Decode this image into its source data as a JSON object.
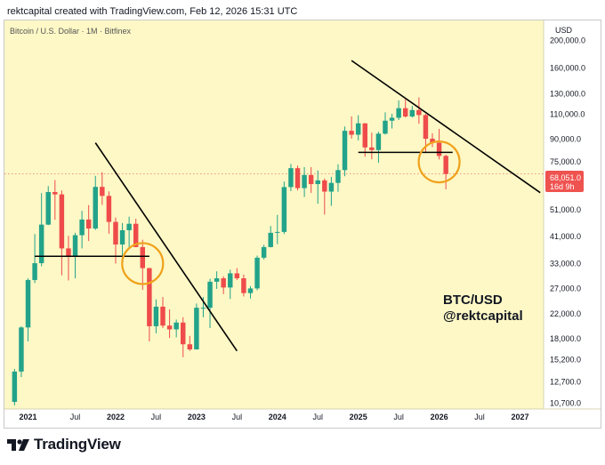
{
  "header": {
    "text": "rektcapital created with TradingView.com, Feb 12, 2026 15:31 UTC"
  },
  "footer": {
    "brand": "TradingView",
    "logo_icon": "tradingview-logo-icon"
  },
  "colors": {
    "background": "#fdf8c6",
    "up": "#22a38a",
    "down": "#ef4b4b",
    "trendline": "#000000",
    "circle": "#f0a21b",
    "price_tag": "#ef5350"
  },
  "chart_data": {
    "type": "candlestick",
    "title": "Bitcoin / U.S. Dollar · 1M · Bitfinex",
    "currency": "USD",
    "y_scale": "log",
    "ylim": [
      10200,
      235000
    ],
    "y_ticks": [
      200000,
      160000,
      130000,
      110000,
      90000,
      75000,
      51000,
      41000,
      33000,
      27000,
      22000,
      18000,
      15200,
      12700,
      10700
    ],
    "y_tick_labels": [
      "200,000.0",
      "160,000.0",
      "130,000.0",
      "110,000.0",
      "90,000.0",
      "75,000.0",
      "51,000.0",
      "41,000.0",
      "33,000.0",
      "27,000.0",
      "22,000.0",
      "18,000.0",
      "15,200.0",
      "12,700.0",
      "10,700.0"
    ],
    "x_ticks": [
      "2020-12",
      "2021-07",
      "2022-01",
      "2022-07",
      "2023-01",
      "2023-07",
      "2024-01",
      "2024-07",
      "2025-01",
      "2025-07",
      "2026-01",
      "2026-07",
      "2027-01"
    ],
    "x_tick_labels": [
      "2021",
      "Jul",
      "2022",
      "Jul",
      "2023",
      "Jul",
      "2024",
      "Jul",
      "2025",
      "Jul",
      "2026",
      "Jul",
      "2027"
    ],
    "x_range": [
      "2020-09",
      "2027-04"
    ],
    "current_price": {
      "value": 68051,
      "label": "68,051.0",
      "countdown": "16d 9h"
    },
    "watermark": [
      "BTC/USD",
      "@rektcapital"
    ],
    "candles": [
      {
        "t": "2020-10",
        "o": 10800,
        "h": 14100,
        "l": 10500,
        "c": 13800
      },
      {
        "t": "2020-11",
        "o": 13800,
        "h": 19900,
        "l": 13200,
        "c": 19700
      },
      {
        "t": "2020-12",
        "o": 19700,
        "h": 29300,
        "l": 17600,
        "c": 28900
      },
      {
        "t": "2021-01",
        "o": 28900,
        "h": 41900,
        "l": 28200,
        "c": 33100
      },
      {
        "t": "2021-02",
        "o": 33100,
        "h": 58300,
        "l": 32300,
        "c": 45200
      },
      {
        "t": "2021-03",
        "o": 45200,
        "h": 61700,
        "l": 45000,
        "c": 58800
      },
      {
        "t": "2021-04",
        "o": 58800,
        "h": 64800,
        "l": 47000,
        "c": 57700
      },
      {
        "t": "2021-05",
        "o": 57700,
        "h": 59500,
        "l": 30000,
        "c": 37300
      },
      {
        "t": "2021-06",
        "o": 37300,
        "h": 41300,
        "l": 28800,
        "c": 35000
      },
      {
        "t": "2021-07",
        "o": 35000,
        "h": 42300,
        "l": 29300,
        "c": 41500
      },
      {
        "t": "2021-08",
        "o": 41500,
        "h": 50500,
        "l": 37300,
        "c": 47100
      },
      {
        "t": "2021-09",
        "o": 47100,
        "h": 52900,
        "l": 39600,
        "c": 43800
      },
      {
        "t": "2021-10",
        "o": 43800,
        "h": 67000,
        "l": 43300,
        "c": 61300
      },
      {
        "t": "2021-11",
        "o": 61300,
        "h": 69000,
        "l": 53000,
        "c": 57000
      },
      {
        "t": "2021-12",
        "o": 57000,
        "h": 59100,
        "l": 42000,
        "c": 46200
      },
      {
        "t": "2022-01",
        "o": 46200,
        "h": 47900,
        "l": 33000,
        "c": 38500
      },
      {
        "t": "2022-02",
        "o": 38500,
        "h": 45800,
        "l": 34300,
        "c": 43200
      },
      {
        "t": "2022-03",
        "o": 43200,
        "h": 48200,
        "l": 37100,
        "c": 45500
      },
      {
        "t": "2022-04",
        "o": 45500,
        "h": 47400,
        "l": 37700,
        "c": 37700
      },
      {
        "t": "2022-05",
        "o": 37700,
        "h": 40000,
        "l": 26700,
        "c": 31800
      },
      {
        "t": "2022-06",
        "o": 31800,
        "h": 31900,
        "l": 17600,
        "c": 19900
      },
      {
        "t": "2022-07",
        "o": 19900,
        "h": 24700,
        "l": 18800,
        "c": 23300
      },
      {
        "t": "2022-08",
        "o": 23300,
        "h": 25200,
        "l": 19600,
        "c": 20000
      },
      {
        "t": "2022-09",
        "o": 20000,
        "h": 22800,
        "l": 18100,
        "c": 19400
      },
      {
        "t": "2022-10",
        "o": 19400,
        "h": 21000,
        "l": 18200,
        "c": 20500
      },
      {
        "t": "2022-11",
        "o": 20500,
        "h": 21400,
        "l": 15500,
        "c": 17200
      },
      {
        "t": "2022-12",
        "o": 17200,
        "h": 18400,
        "l": 16300,
        "c": 16500
      },
      {
        "t": "2023-01",
        "o": 16500,
        "h": 23900,
        "l": 16500,
        "c": 23100
      },
      {
        "t": "2023-02",
        "o": 23100,
        "h": 25200,
        "l": 21400,
        "c": 23100
      },
      {
        "t": "2023-03",
        "o": 23100,
        "h": 29200,
        "l": 19600,
        "c": 28500
      },
      {
        "t": "2023-04",
        "o": 28500,
        "h": 31000,
        "l": 26900,
        "c": 29300
      },
      {
        "t": "2023-05",
        "o": 29300,
        "h": 29800,
        "l": 25800,
        "c": 27200
      },
      {
        "t": "2023-06",
        "o": 27200,
        "h": 31400,
        "l": 24800,
        "c": 30500
      },
      {
        "t": "2023-07",
        "o": 30500,
        "h": 31800,
        "l": 28900,
        "c": 29300
      },
      {
        "t": "2023-08",
        "o": 29300,
        "h": 30200,
        "l": 25300,
        "c": 26000
      },
      {
        "t": "2023-09",
        "o": 26000,
        "h": 27500,
        "l": 24900,
        "c": 27000
      },
      {
        "t": "2023-10",
        "o": 27000,
        "h": 35200,
        "l": 26600,
        "c": 34600
      },
      {
        "t": "2023-11",
        "o": 34600,
        "h": 38400,
        "l": 34100,
        "c": 37700
      },
      {
        "t": "2023-12",
        "o": 37700,
        "h": 44700,
        "l": 37600,
        "c": 42300
      },
      {
        "t": "2024-01",
        "o": 42300,
        "h": 48900,
        "l": 38600,
        "c": 42600
      },
      {
        "t": "2024-02",
        "o": 42600,
        "h": 64000,
        "l": 41900,
        "c": 61200
      },
      {
        "t": "2024-03",
        "o": 61200,
        "h": 73800,
        "l": 59200,
        "c": 71300
      },
      {
        "t": "2024-04",
        "o": 71300,
        "h": 72800,
        "l": 59600,
        "c": 60700
      },
      {
        "t": "2024-05",
        "o": 60700,
        "h": 71900,
        "l": 56500,
        "c": 67500
      },
      {
        "t": "2024-06",
        "o": 67500,
        "h": 71900,
        "l": 58400,
        "c": 62700
      },
      {
        "t": "2024-07",
        "o": 62700,
        "h": 70000,
        "l": 53500,
        "c": 64600
      },
      {
        "t": "2024-08",
        "o": 64600,
        "h": 65600,
        "l": 49000,
        "c": 59000
      },
      {
        "t": "2024-09",
        "o": 59000,
        "h": 66500,
        "l": 52600,
        "c": 63300
      },
      {
        "t": "2024-10",
        "o": 63300,
        "h": 73600,
        "l": 58900,
        "c": 70200
      },
      {
        "t": "2024-11",
        "o": 70200,
        "h": 99800,
        "l": 66800,
        "c": 96400
      },
      {
        "t": "2024-12",
        "o": 96400,
        "h": 108300,
        "l": 90500,
        "c": 93400
      },
      {
        "t": "2025-01",
        "o": 93400,
        "h": 109300,
        "l": 89200,
        "c": 102400
      },
      {
        "t": "2025-02",
        "o": 102400,
        "h": 102500,
        "l": 78200,
        "c": 84300
      },
      {
        "t": "2025-03",
        "o": 84300,
        "h": 95000,
        "l": 76600,
        "c": 82500
      },
      {
        "t": "2025-04",
        "o": 82500,
        "h": 95700,
        "l": 74500,
        "c": 94200
      },
      {
        "t": "2025-05",
        "o": 94200,
        "h": 111900,
        "l": 93500,
        "c": 104600
      },
      {
        "t": "2025-06",
        "o": 104600,
        "h": 110500,
        "l": 98200,
        "c": 107100
      },
      {
        "t": "2025-07",
        "o": 107100,
        "h": 123200,
        "l": 105200,
        "c": 115700
      },
      {
        "t": "2025-08",
        "o": 115700,
        "h": 124500,
        "l": 107300,
        "c": 108200
      },
      {
        "t": "2025-09",
        "o": 108200,
        "h": 117900,
        "l": 107300,
        "c": 114000
      },
      {
        "t": "2025-10",
        "o": 114000,
        "h": 126300,
        "l": 102000,
        "c": 109500
      },
      {
        "t": "2025-11",
        "o": 109500,
        "h": 110500,
        "l": 80500,
        "c": 90400
      },
      {
        "t": "2025-12",
        "o": 90400,
        "h": 94500,
        "l": 84500,
        "c": 87500
      },
      {
        "t": "2026-01",
        "o": 87500,
        "h": 97900,
        "l": 76500,
        "c": 78700
      },
      {
        "t": "2026-02",
        "o": 78700,
        "h": 79500,
        "l": 60100,
        "c": 68051
      }
    ],
    "annotations": {
      "trendlines": [
        {
          "from": {
            "t": "2021-10",
            "v": 87500
          },
          "to": {
            "t": "2023-07",
            "v": 16300
          }
        },
        {
          "from": {
            "t": "2024-12",
            "v": 170000
          },
          "to": {
            "t": "2027-04",
            "v": 58500
          }
        }
      ],
      "support_lines": [
        {
          "from": "2021-01",
          "to": "2022-06",
          "v": 35000
        },
        {
          "from": "2025-01",
          "to": "2026-03",
          "v": 81000
        }
      ],
      "circles": [
        {
          "t": "2022-05",
          "v": 33000
        },
        {
          "t": "2026-01",
          "v": 75000
        }
      ]
    }
  }
}
